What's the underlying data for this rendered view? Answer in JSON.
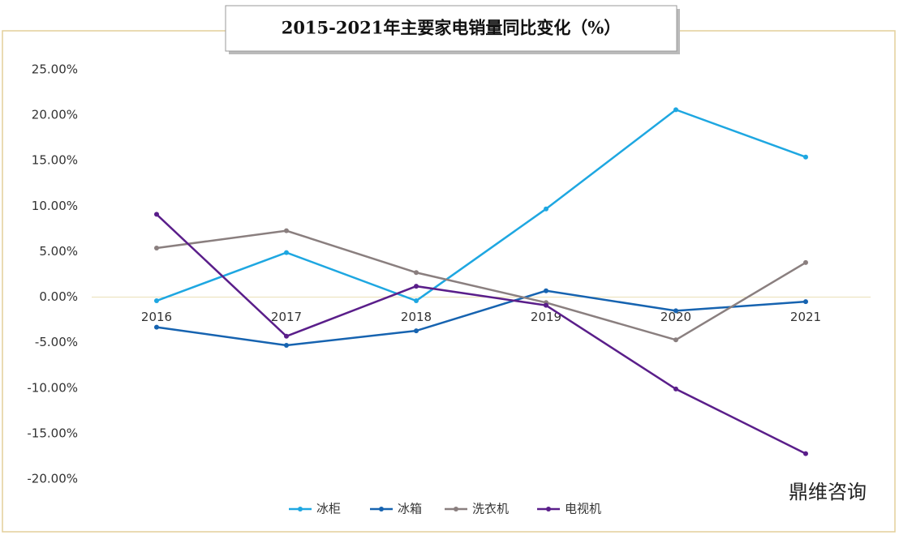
{
  "chart_data": {
    "type": "line",
    "title": "2015-2021年主要家电销量同比变化（%）",
    "categories": [
      "2016",
      "2017",
      "2018",
      "2019",
      "2020",
      "2021"
    ],
    "series": [
      {
        "name": "冰柜",
        "color": "#1ea7e1",
        "values": [
          -0.4,
          4.9,
          -0.4,
          9.7,
          20.6,
          15.4
        ]
      },
      {
        "name": "冰箱",
        "color": "#1663b0",
        "values": [
          -3.3,
          -5.3,
          -3.7,
          0.7,
          -1.5,
          -0.5
        ]
      },
      {
        "name": "洗衣机",
        "color": "#8a7f7f",
        "values": [
          5.4,
          7.3,
          2.7,
          -0.6,
          -4.7,
          3.8
        ]
      },
      {
        "name": "电视机",
        "color": "#5a1e8a",
        "values": [
          9.1,
          -4.3,
          1.2,
          -0.9,
          -10.1,
          -17.2
        ]
      }
    ],
    "ylim": [
      -20,
      25
    ],
    "yticks": [
      {
        "value": -20,
        "label": "-20.00%"
      },
      {
        "value": -15,
        "label": "-15.00%"
      },
      {
        "value": -10,
        "label": "-10.00%"
      },
      {
        "value": -5,
        "label": "-5.00%"
      },
      {
        "value": 0,
        "label": "0.00%"
      },
      {
        "value": 5,
        "label": "5.00%"
      },
      {
        "value": 10,
        "label": "10.00%"
      },
      {
        "value": 15,
        "label": "15.00%"
      },
      {
        "value": 20,
        "label": "20.00%"
      },
      {
        "value": 25,
        "label": "25.00%"
      }
    ],
    "grid": false,
    "legend": "bottom",
    "watermark": "鼎维咨询"
  }
}
